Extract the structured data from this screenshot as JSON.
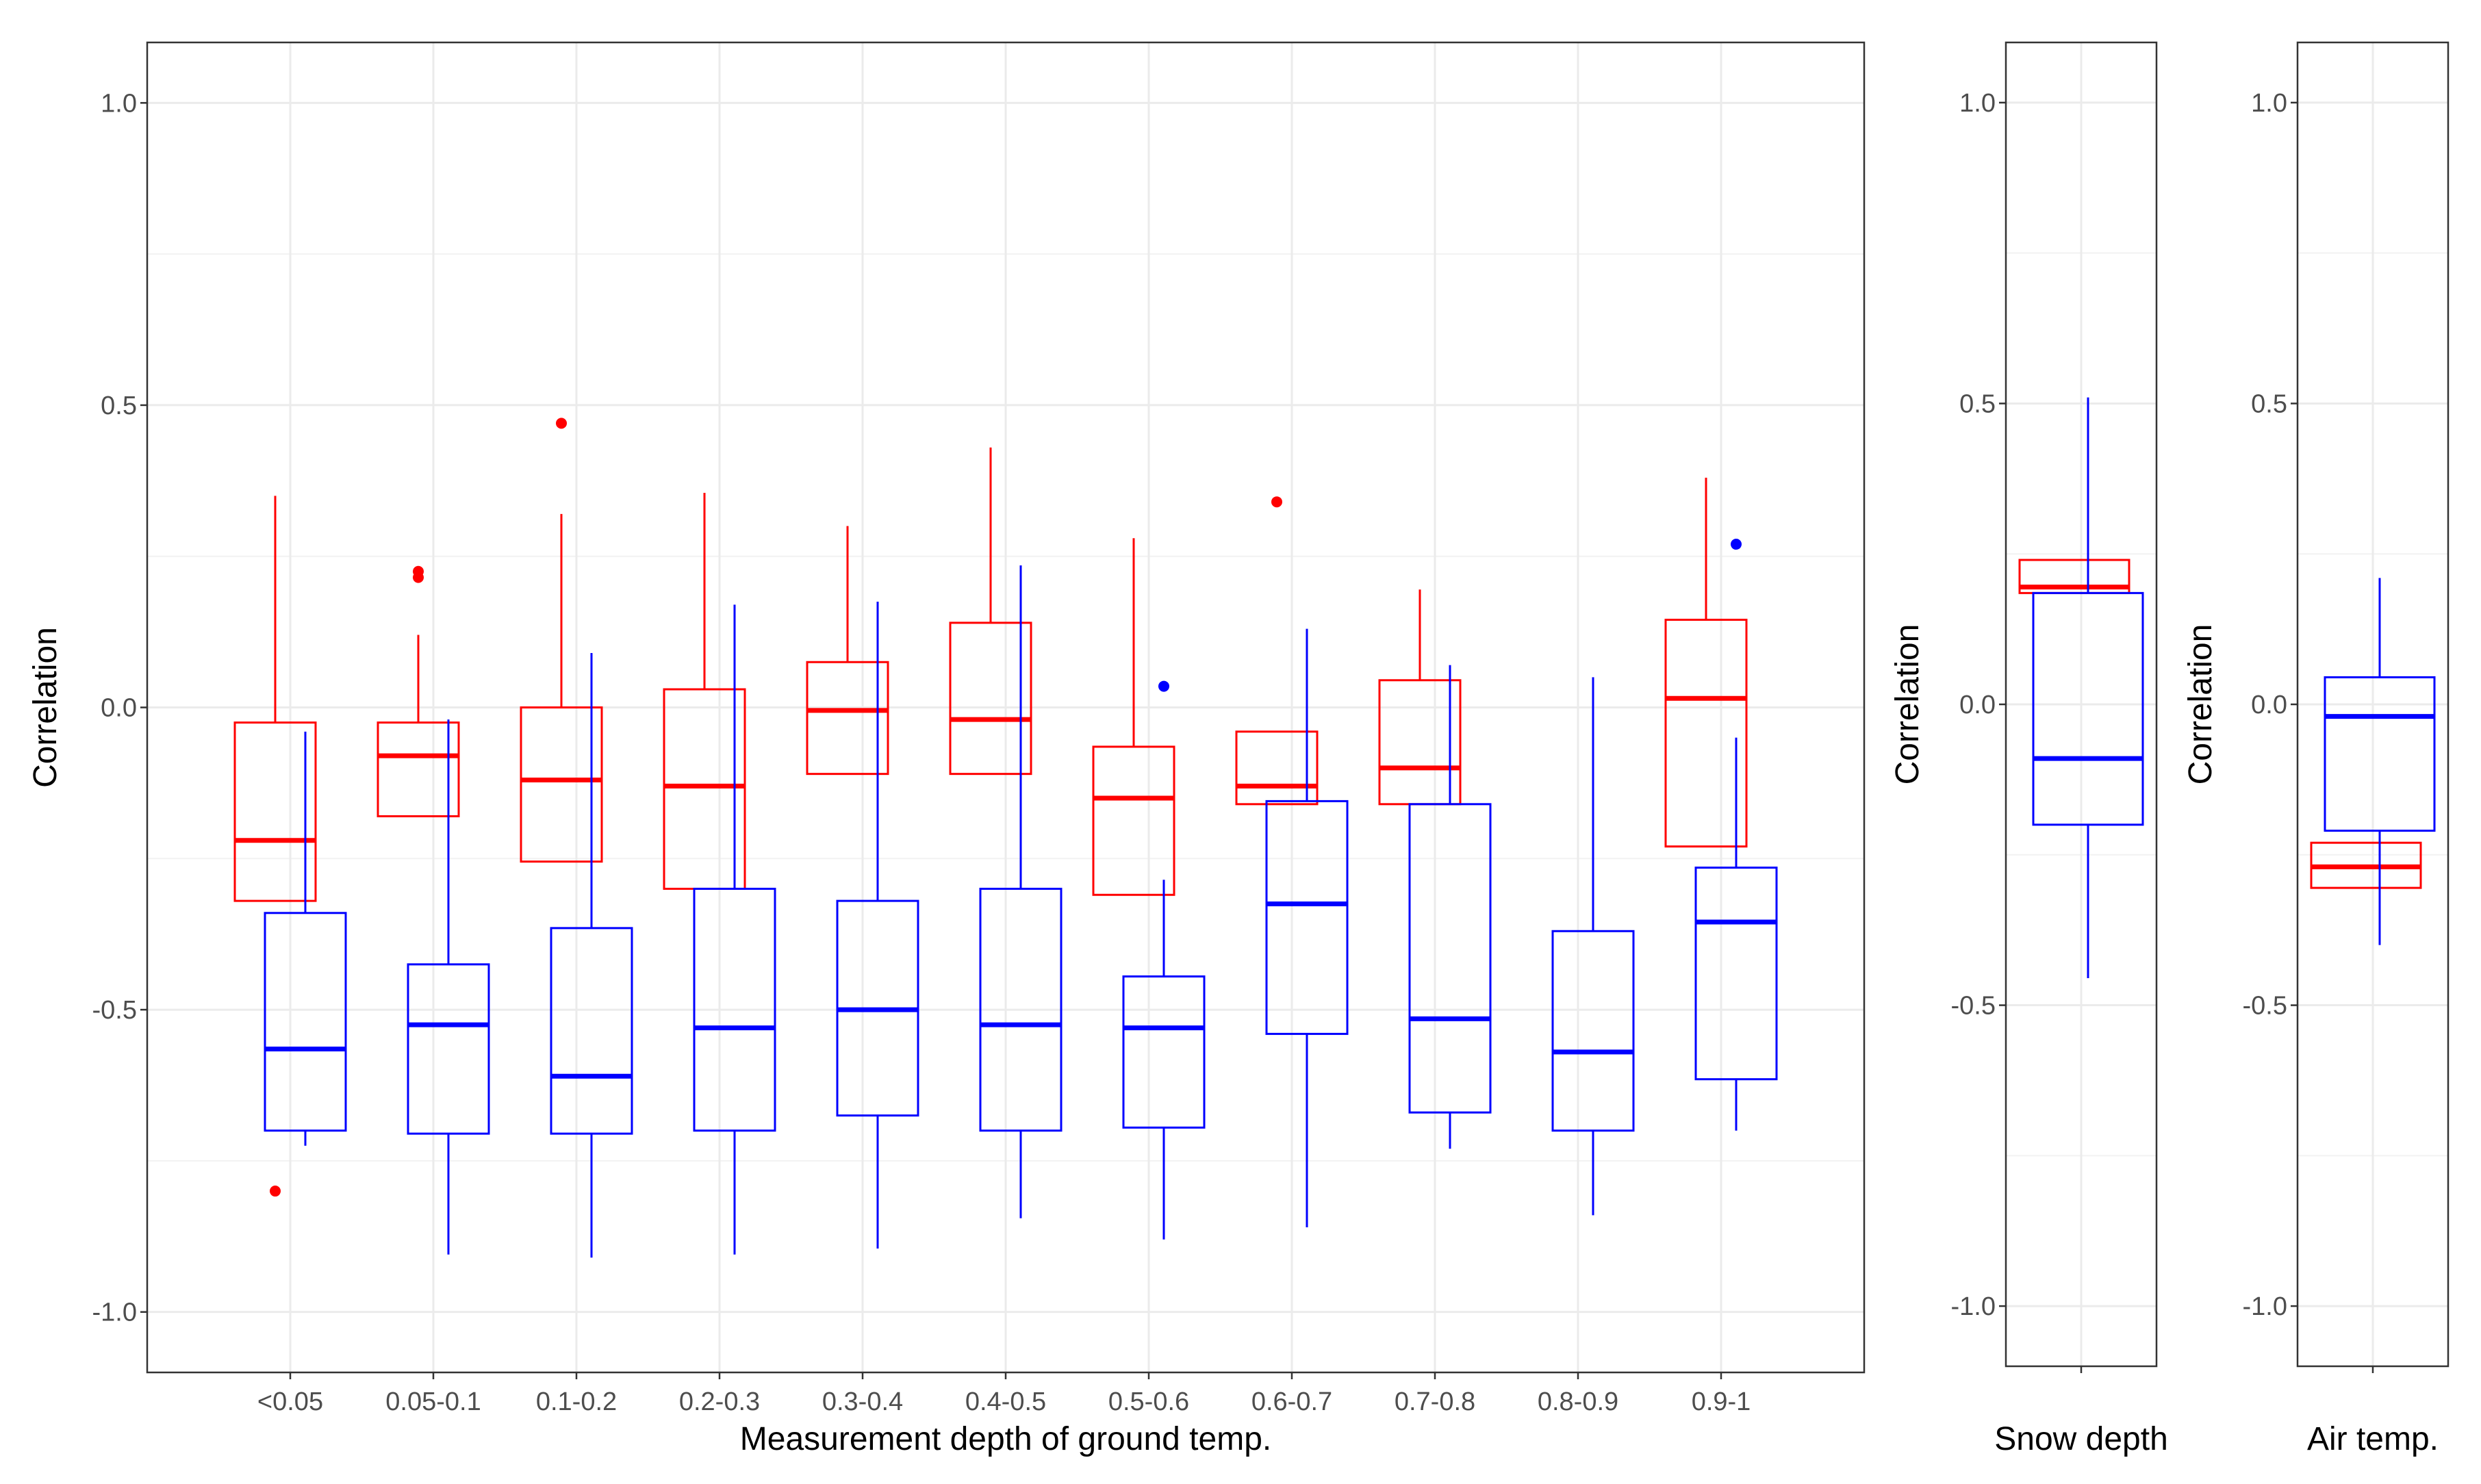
{
  "chart_data": [
    {
      "type": "box",
      "xlabel": "Measurement depth of ground temp.",
      "ylabel": "Correlation",
      "ylim": [
        -1.1,
        1.1
      ],
      "yticks": [
        1.0,
        0.5,
        0.0,
        -0.5,
        -1.0
      ],
      "ytick_labels": [
        "1.0",
        "0.5",
        "0.0",
        "-0.5",
        "-1.0"
      ],
      "grid": true,
      "categories": [
        "<0.05",
        "0.05-0.1",
        "0.1-0.2",
        "0.2-0.3",
        "0.3-0.4",
        "0.4-0.5",
        "0.5-0.6",
        "0.6-0.7",
        "0.7-0.8",
        "0.8-0.9",
        "0.9-1"
      ],
      "series": [
        {
          "name": "red",
          "color": "#ff0000",
          "boxes": [
            {
              "lower": -0.32,
              "q1": -0.32,
              "median": -0.22,
              "q3": -0.025,
              "upper": 0.35,
              "outliers": [
                -0.8
              ]
            },
            {
              "lower": -0.18,
              "q1": -0.18,
              "median": -0.08,
              "q3": -0.025,
              "upper": 0.12,
              "outliers": [
                0.215,
                0.225
              ]
            },
            {
              "lower": -0.255,
              "q1": -0.255,
              "median": -0.12,
              "q3": 0.0,
              "upper": 0.32,
              "outliers": [
                0.47
              ]
            },
            {
              "lower": -0.3,
              "q1": -0.3,
              "median": -0.13,
              "q3": 0.03,
              "upper": 0.355,
              "outliers": []
            },
            {
              "lower": -0.11,
              "q1": -0.11,
              "median": -0.005,
              "q3": 0.075,
              "upper": 0.3,
              "outliers": []
            },
            {
              "lower": -0.11,
              "q1": -0.11,
              "median": -0.02,
              "q3": 0.14,
              "upper": 0.43,
              "outliers": []
            },
            {
              "lower": -0.31,
              "q1": -0.31,
              "median": -0.15,
              "q3": -0.065,
              "upper": 0.28,
              "outliers": []
            },
            {
              "lower": -0.16,
              "q1": -0.16,
              "median": -0.13,
              "q3": -0.04,
              "upper": -0.04,
              "outliers": [
                0.34
              ]
            },
            {
              "lower": -0.16,
              "q1": -0.16,
              "median": -0.1,
              "q3": 0.045,
              "upper": 0.195,
              "outliers": []
            },
            null,
            {
              "lower": -0.23,
              "q1": -0.23,
              "median": 0.015,
              "q3": 0.145,
              "upper": 0.38,
              "outliers": []
            }
          ]
        },
        {
          "name": "blue",
          "color": "#0000ff",
          "boxes": [
            {
              "lower": -0.725,
              "q1": -0.7,
              "median": -0.565,
              "q3": -0.34,
              "upper": -0.04,
              "outliers": []
            },
            {
              "lower": -0.905,
              "q1": -0.705,
              "median": -0.525,
              "q3": -0.425,
              "upper": -0.02,
              "outliers": []
            },
            {
              "lower": -0.91,
              "q1": -0.705,
              "median": -0.61,
              "q3": -0.365,
              "upper": 0.09,
              "outliers": []
            },
            {
              "lower": -0.905,
              "q1": -0.7,
              "median": -0.53,
              "q3": -0.3,
              "upper": 0.17,
              "outliers": []
            },
            {
              "lower": -0.895,
              "q1": -0.675,
              "median": -0.5,
              "q3": -0.32,
              "upper": 0.175,
              "outliers": []
            },
            {
              "lower": -0.845,
              "q1": -0.7,
              "median": -0.525,
              "q3": -0.3,
              "upper": 0.235,
              "outliers": []
            },
            {
              "lower": -0.88,
              "q1": -0.695,
              "median": -0.53,
              "q3": -0.445,
              "upper": -0.285,
              "outliers": [
                0.035
              ]
            },
            {
              "lower": -0.86,
              "q1": -0.54,
              "median": -0.325,
              "q3": -0.155,
              "upper": 0.13,
              "outliers": []
            },
            {
              "lower": -0.73,
              "q1": -0.67,
              "median": -0.515,
              "q3": -0.16,
              "upper": 0.07,
              "outliers": []
            },
            {
              "lower": -0.84,
              "q1": -0.7,
              "median": -0.57,
              "q3": -0.37,
              "upper": 0.05,
              "outliers": []
            },
            {
              "lower": -0.7,
              "q1": -0.615,
              "median": -0.355,
              "q3": -0.265,
              "upper": -0.05,
              "outliers": [
                0.27
              ]
            }
          ]
        }
      ]
    },
    {
      "type": "box",
      "xlabel": "Snow depth",
      "ylabel": "Correlation",
      "ylim": [
        -1.1,
        1.1
      ],
      "yticks": [
        1.0,
        0.5,
        0.0,
        -0.5,
        -1.0
      ],
      "ytick_labels": [
        "1.0",
        "0.5",
        "0.0",
        "-0.5",
        "-1.0"
      ],
      "grid": true,
      "series": [
        {
          "name": "red",
          "color": "#ff0000",
          "boxes": [
            {
              "lower": 0.185,
              "q1": 0.185,
              "median": 0.195,
              "q3": 0.24,
              "upper": 0.24,
              "outliers": []
            }
          ]
        },
        {
          "name": "blue",
          "color": "#0000ff",
          "boxes": [
            {
              "lower": -0.455,
              "q1": -0.2,
              "median": -0.09,
              "q3": 0.185,
              "upper": 0.51,
              "outliers": []
            }
          ]
        }
      ]
    },
    {
      "type": "box",
      "xlabel": "Air temp.",
      "ylabel": "Correlation",
      "ylim": [
        -1.1,
        1.1
      ],
      "yticks": [
        1.0,
        0.5,
        0.0,
        -0.5,
        -1.0
      ],
      "ytick_labels": [
        "1.0",
        "0.5",
        "0.0",
        "-0.5",
        "-1.0"
      ],
      "grid": true,
      "series": [
        {
          "name": "red",
          "color": "#ff0000",
          "boxes": [
            {
              "lower": -0.305,
              "q1": -0.305,
              "median": -0.27,
              "q3": -0.23,
              "upper": -0.23,
              "outliers": []
            }
          ]
        },
        {
          "name": "blue",
          "color": "#0000ff",
          "boxes": [
            {
              "lower": -0.4,
              "q1": -0.21,
              "median": -0.02,
              "q3": 0.045,
              "upper": 0.21,
              "outliers": []
            }
          ]
        }
      ]
    }
  ]
}
